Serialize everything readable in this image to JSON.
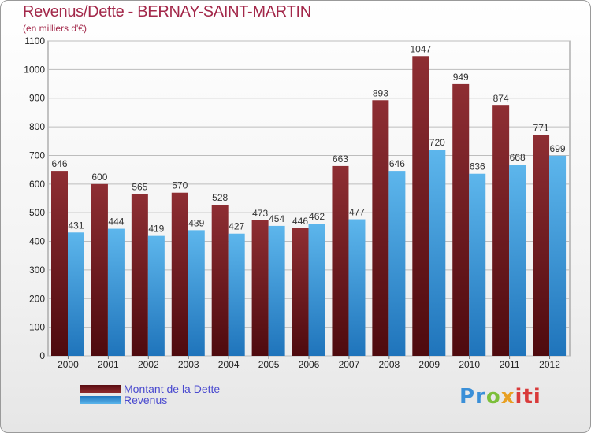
{
  "chart_data": {
    "type": "bar",
    "title": "Revenus/Dette - BERNAY-SAINT-MARTIN",
    "subtitle": "(en milliers d'€)",
    "xlabel": "",
    "ylabel": "",
    "ylim": [
      0,
      1100
    ],
    "yticks": [
      0,
      100,
      200,
      300,
      400,
      500,
      600,
      700,
      800,
      900,
      1000,
      1100
    ],
    "grid": true,
    "legend_position": "bottom-left",
    "categories": [
      "2000",
      "2001",
      "2002",
      "2003",
      "2004",
      "2005",
      "2006",
      "2007",
      "2008",
      "2009",
      "2010",
      "2011",
      "2012"
    ],
    "series": [
      {
        "name": "Montant de la Dette",
        "color": "#6e1a1f",
        "values": [
          646,
          600,
          565,
          570,
          528,
          473,
          446,
          663,
          893,
          1047,
          949,
          874,
          771
        ]
      },
      {
        "name": "Revenus",
        "color": "#3f9ee0",
        "values": [
          431,
          444,
          419,
          439,
          427,
          454,
          462,
          477,
          646,
          720,
          636,
          668,
          699
        ]
      }
    ]
  },
  "logo": {
    "p1": "Pr",
    "p2": "o",
    "p3": "x",
    "p4": "iti"
  }
}
